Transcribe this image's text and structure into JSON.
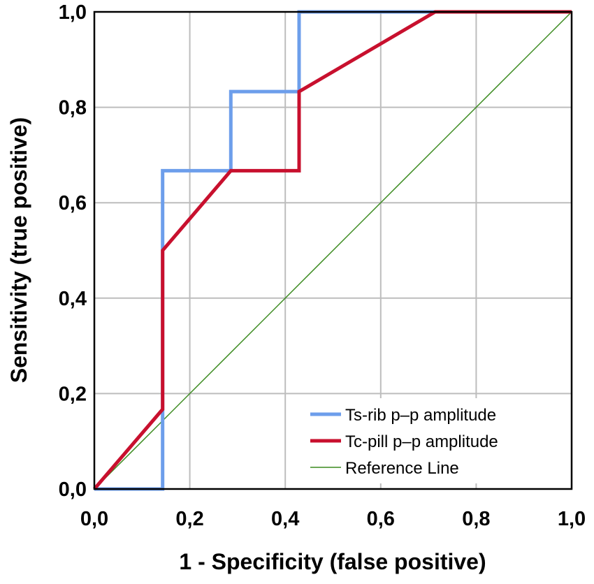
{
  "chart_data": {
    "type": "line",
    "title": "",
    "xlabel": "1 - Specificity (false positive)",
    "ylabel": "Sensitivity (true positive)",
    "xlim": [
      0,
      1
    ],
    "ylim": [
      0,
      1
    ],
    "xticks": [
      "0,0",
      "0,2",
      "0,4",
      "0,6",
      "0,8",
      "1,0"
    ],
    "yticks": [
      "0,0",
      "0,2",
      "0,4",
      "0,6",
      "0,8",
      "1,0"
    ],
    "grid": true,
    "legend_position": "bottom-right",
    "series": [
      {
        "name": "Ts-rib p–p amplitude",
        "color": "#6d9eeb",
        "points": [
          [
            0,
            0
          ],
          [
            0.143,
            0
          ],
          [
            0.143,
            0.667
          ],
          [
            0.286,
            0.667
          ],
          [
            0.286,
            0.833
          ],
          [
            0.429,
            0.833
          ],
          [
            0.429,
            1.0
          ],
          [
            1.0,
            1.0
          ]
        ]
      },
      {
        "name": "Tc-pill p–p amplitude",
        "color": "#c8102e",
        "points": [
          [
            0,
            0
          ],
          [
            0.143,
            0.167
          ],
          [
            0.143,
            0.5
          ],
          [
            0.286,
            0.667
          ],
          [
            0.429,
            0.667
          ],
          [
            0.429,
            0.833
          ],
          [
            0.714,
            1.0
          ],
          [
            1.0,
            1.0
          ]
        ]
      },
      {
        "name": "Reference Line",
        "color": "#3a8a1e",
        "points": [
          [
            0,
            0
          ],
          [
            1,
            1
          ]
        ]
      }
    ]
  }
}
